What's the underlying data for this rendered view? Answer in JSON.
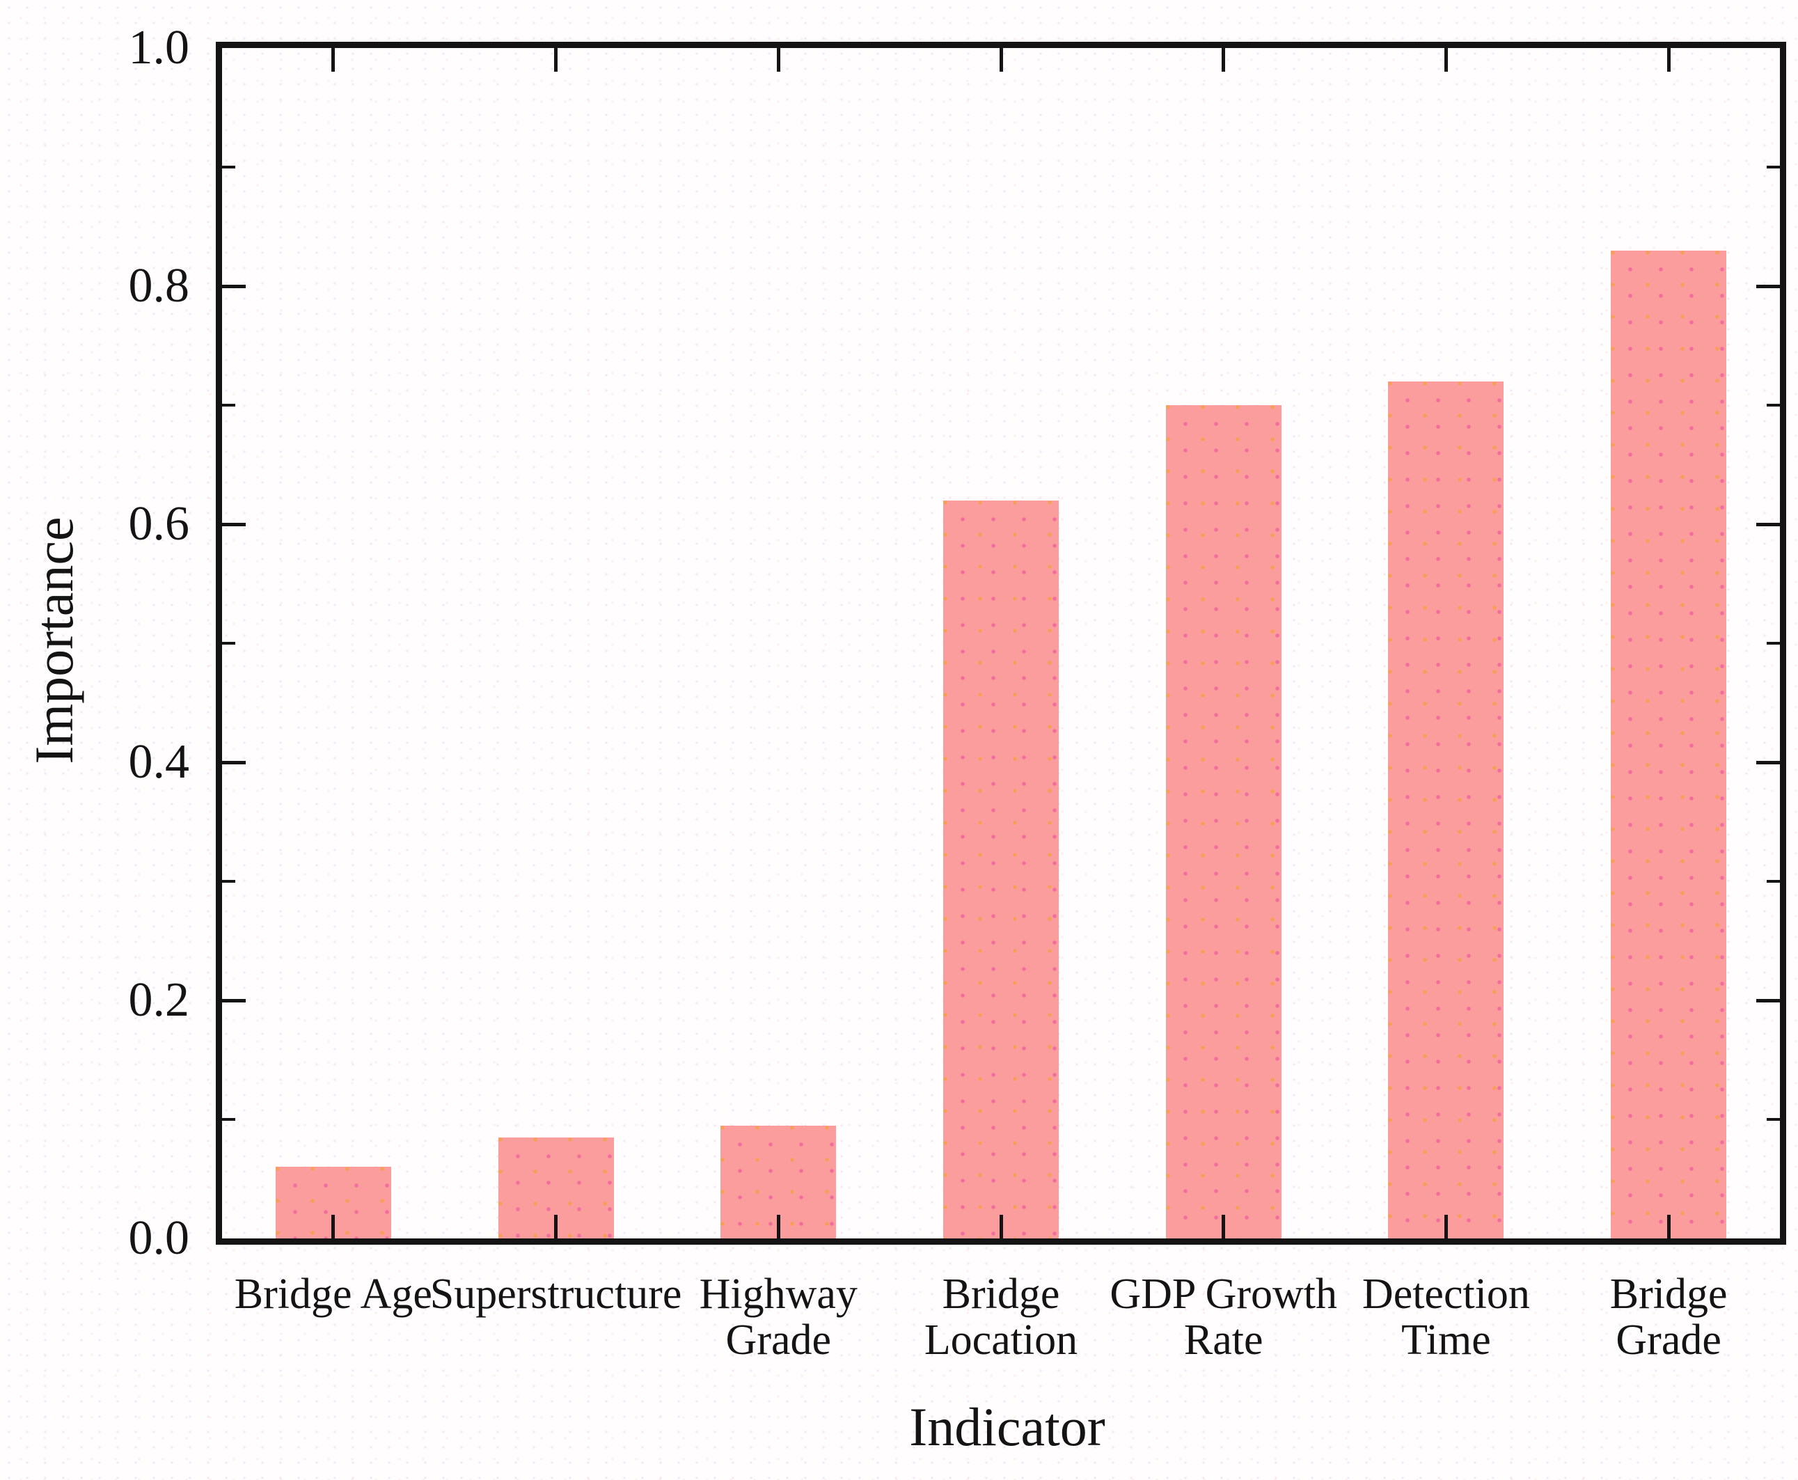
{
  "chart_data": {
    "type": "bar",
    "title": "",
    "xlabel": "Indicator",
    "ylabel": "Importance",
    "categories": [
      "Bridge Age",
      "Superstructure",
      "Highway\nGrade",
      "Bridge\nLocation",
      "GDP Growth\nRate",
      "Detection\nTime",
      "Bridge\nGrade"
    ],
    "values": [
      0.06,
      0.085,
      0.095,
      0.62,
      0.7,
      0.72,
      0.83
    ],
    "ylim": [
      0.0,
      1.0
    ],
    "y_major_tick_values": [
      0.0,
      0.2,
      0.4,
      0.6,
      0.8,
      1.0
    ],
    "y_tick_labels": [
      "0.0",
      "0.2",
      "0.4",
      "0.6",
      "0.8",
      "1.0"
    ],
    "y_minor_tick_values": [
      0.1,
      0.3,
      0.5,
      0.7,
      0.9
    ],
    "grid": "off",
    "legend": "none",
    "colors": {
      "bar_fill": "#fb9d9d",
      "bar_dot_pink": "#f26d9d",
      "bar_dot_orange": "#f89f55",
      "axis": "#141414",
      "text": "#141414",
      "background": "#fffdfe"
    }
  }
}
